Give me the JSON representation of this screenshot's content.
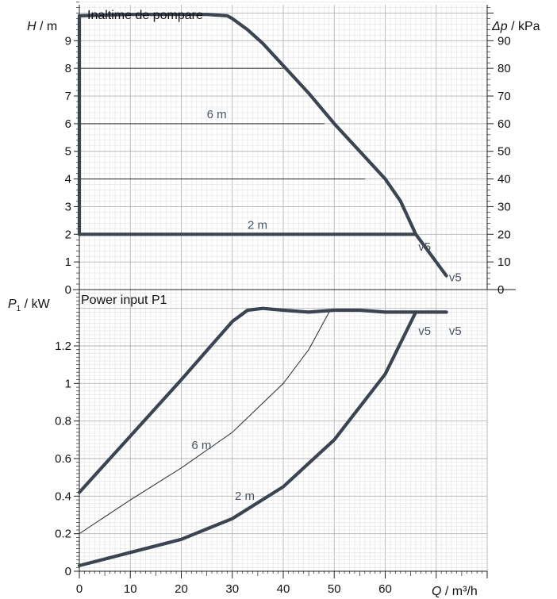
{
  "chart_data": [
    {
      "type": "line",
      "title": "Inaltime de pompare",
      "ylabel": {
        "symbol": "H",
        "unit": " / m"
      },
      "y2label": {
        "symbol": "Δp",
        "unit": " / kPa"
      },
      "xlim": [
        0,
        80
      ],
      "ylim": [
        0,
        10.3
      ],
      "y2lim": [
        0,
        103
      ],
      "yticks": [
        0,
        1,
        2,
        3,
        4,
        5,
        6,
        7,
        8,
        9
      ],
      "y2ticks": [
        0,
        10,
        20,
        30,
        40,
        50,
        60,
        70,
        80,
        90
      ],
      "grid": true,
      "series": [
        {
          "name": "v5",
          "style": "thick",
          "x": [
            0,
            0,
            10,
            20,
            25,
            29,
            30,
            33,
            36,
            40,
            45,
            50,
            55,
            60,
            63,
            66,
            68,
            72
          ],
          "y": [
            2.0,
            9.9,
            9.95,
            9.95,
            9.95,
            9.9,
            9.8,
            9.4,
            8.9,
            8.1,
            7.1,
            6.0,
            5.0,
            4.0,
            3.2,
            2.0,
            1.5,
            0.5
          ]
        },
        {
          "name": "6 m",
          "style": "thin",
          "x": [
            0,
            48
          ],
          "y": [
            6,
            6
          ]
        },
        {
          "name": "",
          "style": "thin",
          "x": [
            0,
            40
          ],
          "y": [
            8,
            8
          ]
        },
        {
          "name": "",
          "style": "thin",
          "x": [
            0,
            56
          ],
          "y": [
            4,
            4
          ]
        },
        {
          "name": "2 m",
          "style": "thick",
          "x": [
            0,
            66
          ],
          "y": [
            2,
            2
          ]
        }
      ],
      "annotations": [
        {
          "text": "6 m",
          "x": 25,
          "y": 6.2
        },
        {
          "text": "2 m",
          "x": 33,
          "y": 2.2
        },
        {
          "text": "v5",
          "x": 66.5,
          "y": 1.4
        },
        {
          "text": "v5",
          "x": 72.5,
          "y": 0.3
        }
      ]
    },
    {
      "type": "line",
      "title": "Power input P1",
      "ylabel": {
        "symbol": "P",
        "sub": "1",
        "unit": " / kW"
      },
      "xlabel": {
        "symbol": "Q",
        "unit": " / m³/h"
      },
      "xlim": [
        0,
        80
      ],
      "ylim": [
        0,
        1.5
      ],
      "xticks": [
        0,
        10,
        20,
        30,
        40,
        50,
        60
      ],
      "yticks": [
        0,
        0.2,
        0.4,
        0.6,
        0.8,
        1,
        1.2
      ],
      "grid": true,
      "series": [
        {
          "name": "v5",
          "style": "thick",
          "x": [
            0,
            10,
            20,
            30,
            33,
            36,
            40,
            45,
            50,
            55,
            60,
            65,
            72
          ],
          "y": [
            0.42,
            0.72,
            1.02,
            1.33,
            1.39,
            1.4,
            1.39,
            1.38,
            1.39,
            1.39,
            1.38,
            1.38,
            1.38
          ]
        },
        {
          "name": "6 m",
          "style": "thin",
          "x": [
            0,
            10,
            20,
            30,
            40,
            45,
            49
          ],
          "y": [
            0.2,
            0.38,
            0.55,
            0.74,
            1.0,
            1.18,
            1.38
          ]
        },
        {
          "name": "2 m",
          "style": "thick",
          "x": [
            0,
            10,
            20,
            30,
            40,
            50,
            60,
            66
          ],
          "y": [
            0.03,
            0.1,
            0.17,
            0.28,
            0.45,
            0.7,
            1.05,
            1.38
          ]
        }
      ],
      "annotations": [
        {
          "text": "6 m",
          "x": 22,
          "y": 0.65
        },
        {
          "text": "2 m",
          "x": 30.5,
          "y": 0.38
        },
        {
          "text": "v5",
          "x": 66.5,
          "y": 1.26
        },
        {
          "text": "v5",
          "x": 72.5,
          "y": 1.26
        }
      ]
    }
  ]
}
